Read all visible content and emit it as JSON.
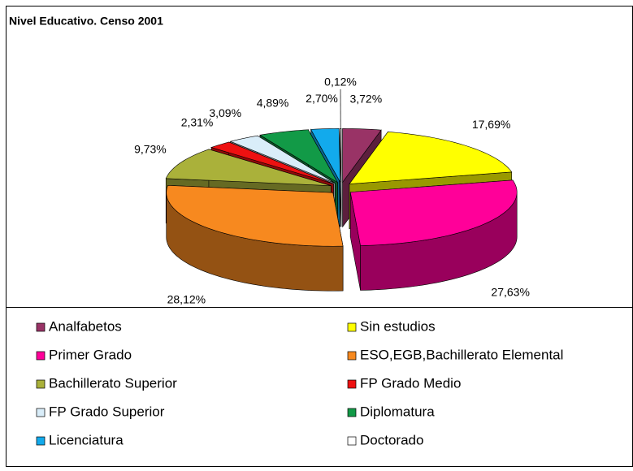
{
  "chart_data": {
    "type": "pie3d",
    "title": "Nivel Educativo. Censo 2001",
    "categories": [
      "Analfabetos",
      "Sin estudios",
      "Primer Grado",
      "ESO,EGB,Bachillerato Elemental",
      "Bachillerato Superior",
      "FP Grado Medio",
      "FP Grado Superior",
      "Diplomatura",
      "Licenciatura",
      "Doctorado"
    ],
    "values": [
      3.72,
      17.69,
      27.63,
      28.12,
      9.73,
      2.31,
      3.09,
      4.89,
      2.7,
      0.12
    ],
    "value_labels": [
      "3,72%",
      "17,69%",
      "27,63%",
      "28,12%",
      "9,73%",
      "2,31%",
      "3,09%",
      "4,89%",
      "2,70%",
      "0,12%"
    ],
    "colors": [
      "#993366",
      "#ffff00",
      "#ff0099",
      "#f7891f",
      "#aab13a",
      "#ee1111",
      "#d9edf9",
      "#129a47",
      "#12aaec",
      "#ffffff"
    ],
    "legend": "bottom"
  }
}
